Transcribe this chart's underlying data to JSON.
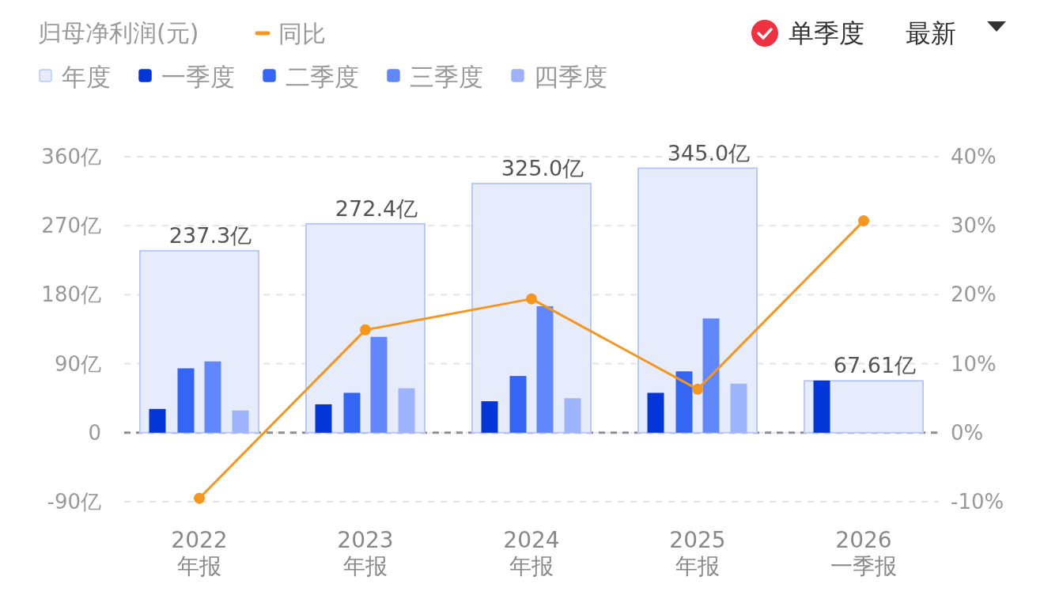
{
  "chart_data": {
    "type": "bar",
    "title": "归母净利润(元)",
    "categories": [
      "2022\n年报",
      "2023\n年报",
      "2024\n年报",
      "2025\n年报",
      "2026\n一季报"
    ],
    "series": [
      {
        "name": "年度",
        "color": "#e6ecfc",
        "values": [
          237.3,
          272.4,
          325.0,
          345.0,
          67.61
        ],
        "value_labels": [
          "237.3亿",
          "272.4亿",
          "325.0亿",
          "345.0亿",
          "67.61亿"
        ]
      },
      {
        "name": "一季度",
        "color": "#0336d9",
        "values": [
          31,
          37,
          41,
          52,
          68
        ]
      },
      {
        "name": "二季度",
        "color": "#3366f5",
        "values": [
          84,
          52,
          74,
          80,
          null
        ]
      },
      {
        "name": "三季度",
        "color": "#6088fc",
        "values": [
          93,
          125,
          165,
          149,
          null
        ]
      },
      {
        "name": "四季度",
        "color": "#9db3fc",
        "values": [
          29,
          58,
          45,
          64,
          null
        ]
      },
      {
        "name": "同比",
        "type": "line",
        "axis": "y2",
        "color": "#f5961e",
        "values": [
          -9.5,
          14.9,
          19.4,
          6.3,
          30.7
        ]
      }
    ],
    "ylim": [
      -90,
      360
    ],
    "yticks": [
      {
        "value": -90,
        "label": "-90亿"
      },
      {
        "value": 0,
        "label": "0"
      },
      {
        "value": 90,
        "label": "90亿"
      },
      {
        "value": 180,
        "label": "180亿"
      },
      {
        "value": 270,
        "label": "270亿"
      },
      {
        "value": 360,
        "label": "360亿"
      }
    ],
    "y2lim": [
      -10,
      40
    ],
    "y2ticks": [
      {
        "value": -10,
        "label": "-10%"
      },
      {
        "value": 0,
        "label": "0%"
      },
      {
        "value": 10,
        "label": "10%"
      },
      {
        "value": 20,
        "label": "20%"
      },
      {
        "value": 30,
        "label": "30%"
      },
      {
        "value": 40,
        "label": "40%"
      }
    ],
    "ref_lines": [
      {
        "axis": "y",
        "value": 0,
        "color": "#8e8e96",
        "line_style": "dashed"
      }
    ],
    "grid": "y",
    "legend": "top left",
    "marker": "circle",
    "line_style": "solid",
    "annotations": [
      "单季度",
      "最新"
    ]
  }
}
